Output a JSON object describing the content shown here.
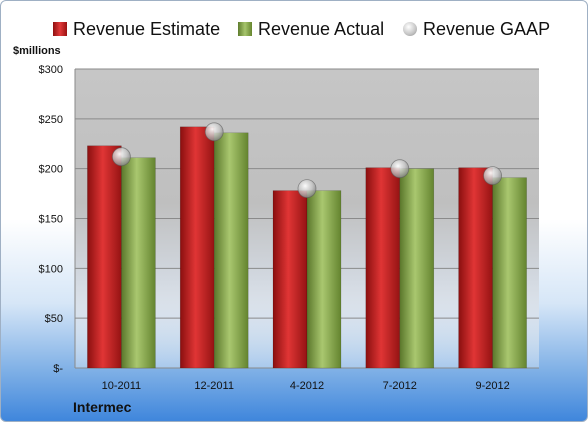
{
  "chart_data": {
    "type": "bar",
    "ylabel": "$millions",
    "categories": [
      "10-2011",
      "12-2011",
      "4-2012",
      "7-2012",
      "9-2012"
    ],
    "series": [
      {
        "name": "Revenue Estimate",
        "kind": "bar",
        "color": "#cc1f1f",
        "values": [
          223,
          242,
          178,
          201,
          201
        ]
      },
      {
        "name": "Revenue Actual",
        "kind": "bar",
        "color": "#8cad54",
        "values": [
          211,
          236,
          178,
          200,
          191
        ]
      },
      {
        "name": "Revenue GAAP",
        "kind": "marker",
        "color": "#c8c8c8",
        "values": [
          212,
          237,
          180,
          200,
          193
        ]
      }
    ],
    "ylim": [
      0,
      300
    ],
    "yticks": [
      0,
      50,
      100,
      150,
      200,
      250,
      300
    ],
    "ytick_labels": [
      "$-",
      "$50",
      "$100",
      "$150",
      "$200",
      "$250",
      "$300"
    ],
    "grid": true,
    "legend_position": "top",
    "footer": "Intermec"
  }
}
